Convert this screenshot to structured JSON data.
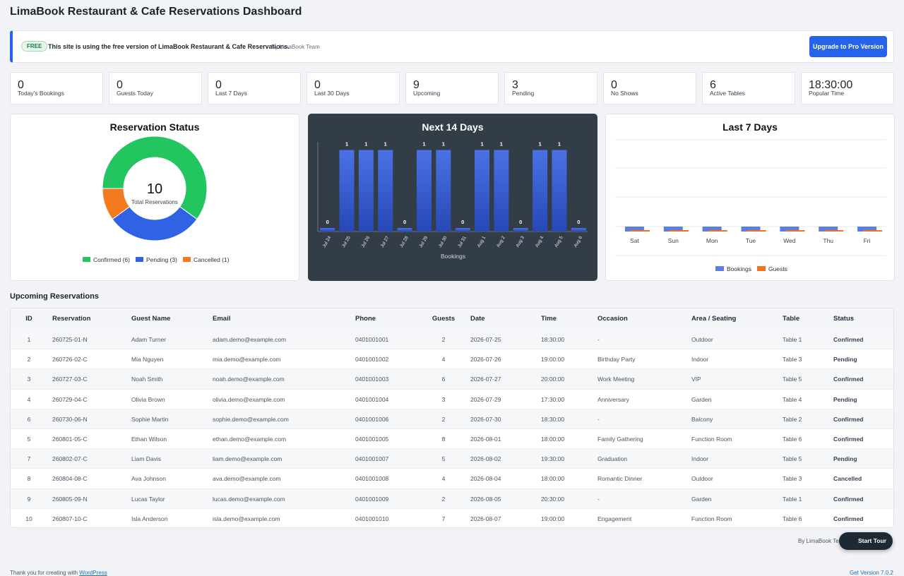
{
  "header": {
    "title": "LimaBook Restaurant & Cafe Reservations Dashboard"
  },
  "notice": {
    "badge": "FREE",
    "text": "This site is using the free version of LimaBook Restaurant & Cafe Reservations.",
    "by": "By LimaBook Team",
    "button": "Upgrade to Pro Version"
  },
  "stats": [
    {
      "value": 0,
      "label": "Today's Bookings"
    },
    {
      "value": 0,
      "label": "Guests Today"
    },
    {
      "value": 0,
      "label": "Last 7 Days"
    },
    {
      "value": 0,
      "label": "Last 30 Days"
    },
    {
      "value": 9,
      "label": "Upcoming"
    },
    {
      "value": 3,
      "label": "Pending"
    },
    {
      "value": 0,
      "label": "No Shows"
    },
    {
      "value": 6,
      "label": "Active Tables"
    },
    {
      "value": "18:30:00",
      "label": "Popular Time"
    }
  ],
  "chart_data": [
    {
      "type": "pie",
      "donut": true,
      "title": "Reservation Status",
      "total": 10,
      "total_label": "Total Reservations",
      "categories": [
        "Confirmed (6)",
        "Pending (3)",
        "Cancelled (1)"
      ],
      "values": [
        6,
        3,
        1
      ],
      "colors": [
        "#22c55e",
        "#2f63e4",
        "#f47a1f"
      ]
    },
    {
      "type": "bar",
      "title": "Next 14 Days",
      "xlabel": "Bookings",
      "categories": [
        "Jul 24",
        "Jul 25",
        "Jul 26",
        "Jul 27",
        "Jul 28",
        "Jul 29",
        "Jul 30",
        "Jul 31",
        "Aug 1",
        "Aug 2",
        "Aug 3",
        "Aug 4",
        "Aug 5",
        "Aug 6"
      ],
      "values": [
        0,
        1,
        1,
        1,
        0,
        1,
        1,
        0,
        1,
        1,
        0,
        1,
        1,
        0
      ],
      "color": "#4a72e6",
      "ylim": [
        0,
        1.1
      ],
      "data_labels": true
    },
    {
      "type": "grouped-bar",
      "title": "Last 7 Days",
      "categories": [
        "Sat",
        "Sun",
        "Mon",
        "Tue",
        "Wed",
        "Thu",
        "Fri"
      ],
      "series": [
        {
          "name": "Bookings",
          "color": "#5b7fe0",
          "values": [
            0,
            0,
            0,
            0,
            0,
            0,
            0
          ]
        },
        {
          "name": "Guests",
          "color": "#f37021",
          "values": [
            0,
            0,
            0,
            0,
            0,
            0,
            0
          ]
        }
      ],
      "ylim": [
        0,
        1
      ],
      "grid": true,
      "legend": "bottom"
    }
  ],
  "table": {
    "title": "Upcoming Reservations",
    "columns": [
      "ID",
      "Reservation",
      "Guest Name",
      "Email",
      "Phone",
      "Guests",
      "Date",
      "Time",
      "Occasion",
      "Area / Seating",
      "Table",
      "Status"
    ],
    "rows": [
      [
        1,
        "260725-01-N",
        "Adam Turner",
        "adam.demo@example.com",
        "0401001001",
        2,
        "2026-07-25",
        "18:30:00",
        "-",
        "Outdoor",
        "Table 1",
        "Confirmed"
      ],
      [
        2,
        "260726-02-C",
        "Mia Nguyen",
        "mia.demo@example.com",
        "0401001002",
        4,
        "2026-07-26",
        "19:00:00",
        "Birthday Party",
        "Indoor",
        "Table 3",
        "Pending"
      ],
      [
        3,
        "260727-03-C",
        "Noah Smith",
        "noah.demo@example.com",
        "0401001003",
        6,
        "2026-07-27",
        "20:00:00",
        "Work Meeting",
        "VIP",
        "Table 5",
        "Confirmed"
      ],
      [
        4,
        "260729-04-C",
        "Olivia Brown",
        "olivia.demo@example.com",
        "0401001004",
        3,
        "2026-07-29",
        "17:30:00",
        "Anniversary",
        "Garden",
        "Table 4",
        "Pending"
      ],
      [
        6,
        "260730-06-N",
        "Sophie Martin",
        "sophie.demo@example.com",
        "0401001006",
        2,
        "2026-07-30",
        "18:30:00",
        "-",
        "Balcony",
        "Table 2",
        "Confirmed"
      ],
      [
        5,
        "260801-05-C",
        "Ethan Wilson",
        "ethan.demo@example.com",
        "0401001005",
        8,
        "2026-08-01",
        "18:00:00",
        "Family Gathering",
        "Function Room",
        "Table 6",
        "Confirmed"
      ],
      [
        7,
        "260802-07-C",
        "Liam Davis",
        "liam.demo@example.com",
        "0401001007",
        5,
        "2026-08-02",
        "19:30:00",
        "Graduation",
        "Indoor",
        "Table 5",
        "Pending"
      ],
      [
        8,
        "260804-08-C",
        "Ava Johnson",
        "ava.demo@example.com",
        "0401001008",
        4,
        "2026-08-04",
        "18:00:00",
        "Romantic Dinner",
        "Outdoor",
        "Table 3",
        "Cancelled"
      ],
      [
        9,
        "260805-09-N",
        "Lucas Taylor",
        "lucas.demo@example.com",
        "0401001009",
        2,
        "2026-08-05",
        "20:30:00",
        "-",
        "Garden",
        "Table 1",
        "Confirmed"
      ],
      [
        10,
        "260807-10-C",
        "Isla Anderson",
        "isla.demo@example.com",
        "0401001010",
        7,
        "2026-08-07",
        "19:00:00",
        "Engagement",
        "Function Room",
        "Table 6",
        "Confirmed"
      ]
    ]
  },
  "footer": {
    "by": "By LimaBook Team",
    "tour": "Start Tour",
    "thanks": "Thank you for creating with",
    "wp": "WordPress",
    "version": "Get Version 7.0.2"
  }
}
